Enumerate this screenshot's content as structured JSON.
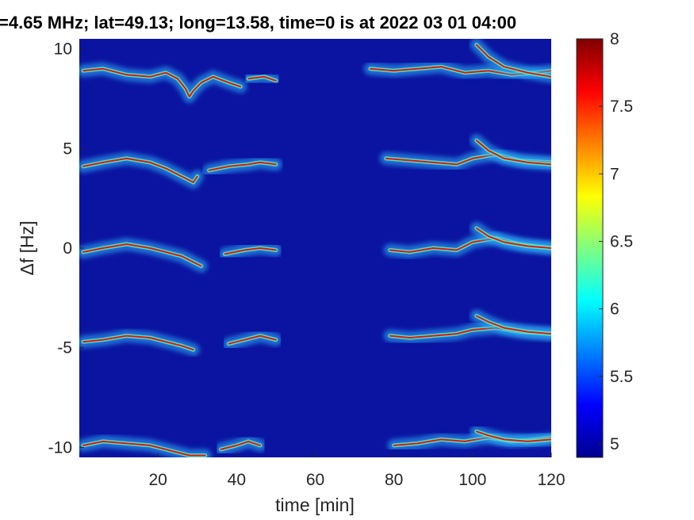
{
  "chart_data": {
    "type": "heatmap",
    "title": "=4.65 MHz;  lat=49.13; long=13.58, time=0 is at 2022 03 01 04:00",
    "xlabel": "time [min]",
    "ylabel": "Δf [Hz]",
    "xlim": [
      0,
      120
    ],
    "ylim": [
      -10.5,
      10.5
    ],
    "x_ticks": [
      20,
      40,
      60,
      80,
      100,
      120
    ],
    "x_tick_labels": [
      "20",
      "40",
      "60",
      "80",
      "100",
      "120"
    ],
    "y_ticks": [
      -10,
      -5,
      0,
      5,
      10
    ],
    "y_tick_labels": [
      "-10",
      "-5",
      "0",
      "5",
      "10"
    ],
    "colorbar": {
      "min": 4.9,
      "max": 8,
      "ticks": [
        5,
        5.5,
        6,
        6.5,
        7,
        7.5,
        8
      ],
      "tick_labels": [
        "5",
        "5.5",
        "6",
        "6.5",
        "7",
        "7.5",
        "8"
      ],
      "colormap": "jet"
    },
    "background_color": "#0a14a0",
    "traces": [
      {
        "name_offset": 10,
        "segments": [
          {
            "x": [
              1,
              6,
              12,
              18,
              22,
              25,
              27,
              28,
              29,
              31,
              34,
              38,
              41
            ],
            "y": [
              8.9,
              9.0,
              8.7,
              8.6,
              8.8,
              8.5,
              8.0,
              7.6,
              7.9,
              8.3,
              8.6,
              8.3,
              8.1
            ]
          },
          {
            "x": [
              43,
              47,
              50
            ],
            "y": [
              8.5,
              8.6,
              8.4
            ]
          },
          {
            "x": [
              74,
              80,
              86,
              92,
              98,
              104,
              110,
              116,
              120
            ],
            "y": [
              9.0,
              8.9,
              9.0,
              9.1,
              8.8,
              8.9,
              8.7,
              8.8,
              8.9
            ]
          },
          {
            "x": [
              101,
              104,
              108,
              114,
              120
            ],
            "y": [
              10.2,
              9.6,
              9.1,
              8.8,
              8.6
            ]
          }
        ]
      },
      {
        "name_offset": 5,
        "segments": [
          {
            "x": [
              1,
              6,
              12,
              18,
              22,
              26,
              29,
              30
            ],
            "y": [
              4.1,
              4.3,
              4.5,
              4.3,
              4.0,
              3.6,
              3.3,
              3.6
            ]
          },
          {
            "x": [
              33,
              38,
              43,
              46,
              50
            ],
            "y": [
              3.9,
              4.1,
              4.2,
              4.3,
              4.2
            ]
          },
          {
            "x": [
              78,
              84,
              90,
              96,
              100,
              106,
              112,
              120
            ],
            "y": [
              4.5,
              4.4,
              4.3,
              4.2,
              4.5,
              4.7,
              4.4,
              4.3
            ]
          },
          {
            "x": [
              101,
              104,
              108,
              114,
              120
            ],
            "y": [
              5.4,
              4.9,
              4.5,
              4.3,
              4.2
            ]
          }
        ]
      },
      {
        "name_offset": 0,
        "segments": [
          {
            "x": [
              1,
              6,
              12,
              18,
              22,
              26,
              29,
              31
            ],
            "y": [
              -0.2,
              0.0,
              0.2,
              0.0,
              -0.2,
              -0.4,
              -0.7,
              -0.9
            ]
          },
          {
            "x": [
              37,
              42,
              46,
              50
            ],
            "y": [
              -0.3,
              -0.1,
              0.0,
              -0.1
            ]
          },
          {
            "x": [
              79,
              84,
              90,
              96,
              100,
              106,
              112,
              120
            ],
            "y": [
              -0.1,
              -0.2,
              0.0,
              -0.1,
              0.3,
              0.5,
              0.2,
              0.0
            ]
          },
          {
            "x": [
              101,
              104,
              108,
              114,
              120
            ],
            "y": [
              1.0,
              0.6,
              0.3,
              0.1,
              0.0
            ]
          }
        ]
      },
      {
        "name_offset": -5,
        "segments": [
          {
            "x": [
              1,
              6,
              12,
              18,
              22,
              26,
              29
            ],
            "y": [
              -4.7,
              -4.6,
              -4.4,
              -4.5,
              -4.7,
              -4.9,
              -5.1
            ]
          },
          {
            "x": [
              38,
              42,
              46,
              50
            ],
            "y": [
              -4.8,
              -4.6,
              -4.4,
              -4.6
            ]
          },
          {
            "x": [
              79,
              84,
              90,
              96,
              100,
              106,
              112,
              120
            ],
            "y": [
              -4.4,
              -4.5,
              -4.4,
              -4.3,
              -4.1,
              -4.0,
              -4.2,
              -4.3
            ]
          },
          {
            "x": [
              101,
              104,
              108,
              114,
              120
            ],
            "y": [
              -3.4,
              -3.7,
              -4.0,
              -4.2,
              -4.3
            ]
          }
        ]
      },
      {
        "name_offset": -10,
        "segments": [
          {
            "x": [
              1,
              6,
              12,
              18,
              24,
              28,
              32
            ],
            "y": [
              -9.9,
              -9.7,
              -9.8,
              -9.9,
              -10.2,
              -10.4,
              -10.4
            ]
          },
          {
            "x": [
              36,
              40,
              43,
              46
            ],
            "y": [
              -10.1,
              -9.9,
              -9.7,
              -9.9
            ]
          },
          {
            "x": [
              80,
              86,
              92,
              98,
              104,
              110,
              116,
              120
            ],
            "y": [
              -9.9,
              -9.8,
              -9.6,
              -9.7,
              -9.5,
              -9.7,
              -9.6,
              -9.5
            ]
          },
          {
            "x": [
              101,
              104,
              108,
              114,
              120
            ],
            "y": [
              -9.2,
              -9.4,
              -9.6,
              -9.7,
              -9.6
            ]
          }
        ]
      }
    ]
  }
}
